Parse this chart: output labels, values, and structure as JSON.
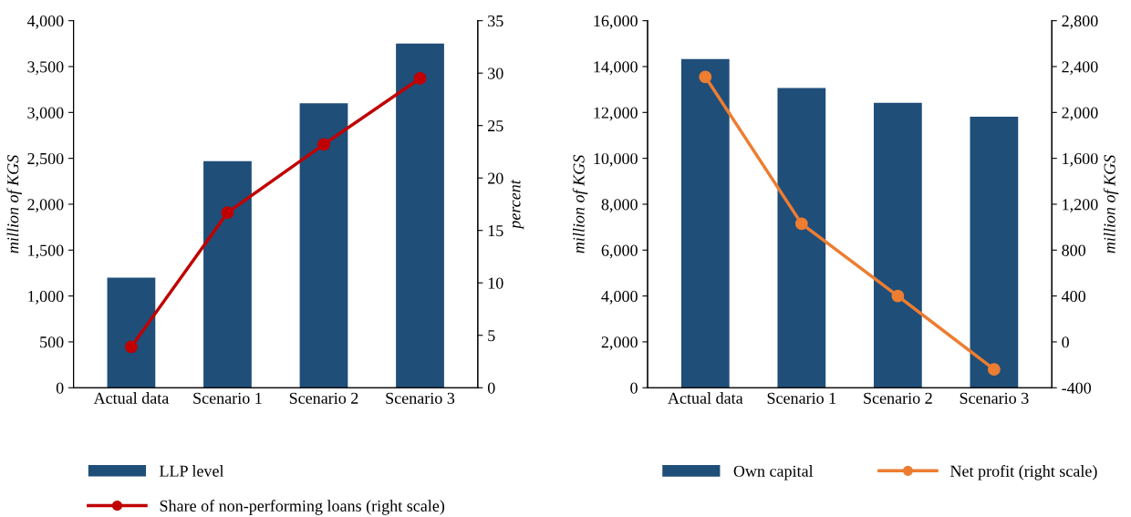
{
  "chart_data": [
    {
      "type": "bar",
      "categories": [
        "Actual data",
        "Scenario 1",
        "Scenario 2",
        "Scenario 3"
      ],
      "series": [
        {
          "name": "LLP level",
          "color": "#1f4e79",
          "values": [
            1200,
            2470,
            3100,
            3750
          ]
        },
        {
          "name": "Share of non-performing loans (right scale)",
          "color": "#c00000",
          "values": [
            3.9,
            16.7,
            23.2,
            29.5
          ],
          "type": "line",
          "axis": "y2",
          "marker": "circle"
        }
      ],
      "ylabel": "million of KGS",
      "y2label": "percent",
      "ylim": [
        0,
        4000
      ],
      "yticks": [
        0,
        500,
        {
          "value": 1000,
          "label": "1,000"
        },
        {
          "value": 1500,
          "label": "1,500"
        },
        {
          "value": 2000,
          "label": "2,000"
        },
        {
          "value": 2500,
          "label": "2,500"
        },
        {
          "value": 3000,
          "label": "3,000"
        },
        {
          "value": 3500,
          "label": "3,500"
        },
        {
          "value": 4000,
          "label": "4,000"
        }
      ],
      "y2lim": [
        0,
        35
      ],
      "y2ticks": [
        0,
        5,
        10,
        15,
        20,
        25,
        30,
        35
      ],
      "legend": "bottom",
      "grid": false
    },
    {
      "type": "bar",
      "categories": [
        "Actual data",
        "Scenario 1",
        "Scenario 2",
        "Scenario 3"
      ],
      "series": [
        {
          "name": "Own capital",
          "color": "#1f4e79",
          "values": [
            14330,
            13070,
            12420,
            11810
          ]
        },
        {
          "name": "Net profit (right scale)",
          "color": "#ed7d31",
          "values": [
            2310,
            1030,
            400,
            -240
          ],
          "type": "line",
          "axis": "y2",
          "marker": "circle"
        }
      ],
      "ylabel": "million of KGS",
      "y2label": "million of KGS",
      "ylim": [
        0,
        16000
      ],
      "yticks": [
        0,
        {
          "value": 2000,
          "label": "2,000"
        },
        {
          "value": 4000,
          "label": "4,000"
        },
        {
          "value": 6000,
          "label": "6,000"
        },
        {
          "value": 8000,
          "label": "8,000"
        },
        {
          "value": 10000,
          "label": "10,000"
        },
        {
          "value": 12000,
          "label": "12,000"
        },
        {
          "value": 14000,
          "label": "14,000"
        },
        {
          "value": 16000,
          "label": "16,000"
        }
      ],
      "y2lim": [
        -400,
        2800
      ],
      "y2ticks": [
        -400,
        0,
        400,
        800,
        {
          "value": 1200,
          "label": "1,200"
        },
        {
          "value": 1600,
          "label": "1,600"
        },
        {
          "value": 2000,
          "label": "2,000"
        },
        {
          "value": 2400,
          "label": "2,400"
        },
        {
          "value": 2800,
          "label": "2,800"
        }
      ],
      "legend": "bottom",
      "grid": false
    }
  ]
}
